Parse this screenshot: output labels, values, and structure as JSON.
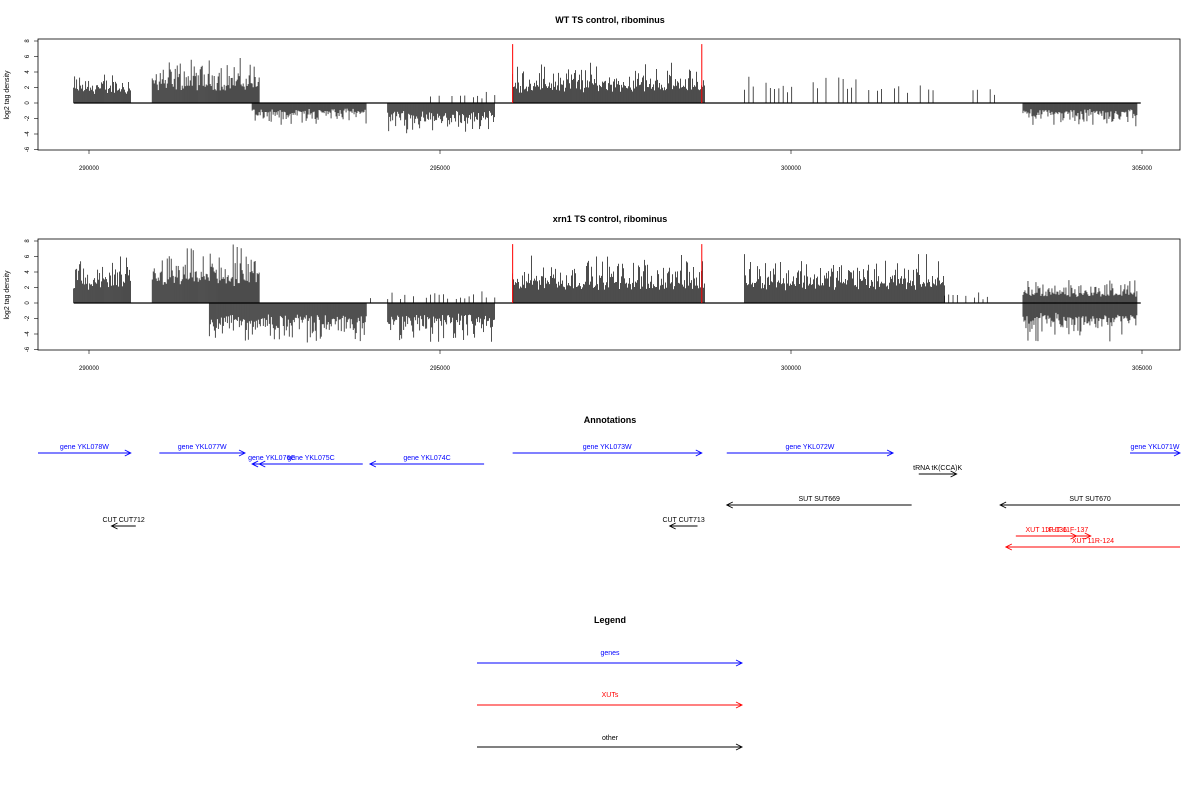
{
  "chart_data": [
    {
      "type": "bar",
      "title": "WT TS control, ribominus",
      "ylabel": "log2 tag density",
      "xlim": [
        289400,
        305400
      ],
      "ylim": [
        -6,
        8
      ],
      "x_ticks": [
        "290000",
        "295000",
        "300000",
        "305000"
      ],
      "y_ticks": [
        "-6",
        "-4",
        "-2",
        "0",
        "2",
        "4",
        "6",
        "8"
      ],
      "markers": {
        "color": "#ff0000",
        "x": [
          296050,
          298700
        ]
      },
      "segments": [
        {
          "start": 289900,
          "end": 290700,
          "strand": "+",
          "max": 4.0
        },
        {
          "start": 291000,
          "end": 292500,
          "strand": "+",
          "max": 5.8
        },
        {
          "start": 292400,
          "end": 294000,
          "strand": "-",
          "max": 2.8
        },
        {
          "start": 294300,
          "end": 295800,
          "strand": "-",
          "max": 3.9
        },
        {
          "start": 294900,
          "end": 295800,
          "strand": "+",
          "max": 1.8,
          "sparse": true
        },
        {
          "start": 296050,
          "end": 298750,
          "strand": "+",
          "max": 5.2
        },
        {
          "start": 299300,
          "end": 302000,
          "strand": "+",
          "max": 3.8,
          "sparse": true
        },
        {
          "start": 302500,
          "end": 302800,
          "strand": "+",
          "max": 2.5,
          "sparse": true
        },
        {
          "start": 303200,
          "end": 304800,
          "strand": "-",
          "max": 3.0
        }
      ]
    },
    {
      "type": "bar",
      "title": "xrn1 TS control, ribominus",
      "ylabel": "log2 tag density",
      "xlim": [
        289400,
        305400
      ],
      "ylim": [
        -6,
        8
      ],
      "x_ticks": [
        "290000",
        "295000",
        "300000",
        "305000"
      ],
      "y_ticks": [
        "-6",
        "-4",
        "-2",
        "0",
        "2",
        "4",
        "6",
        "8"
      ],
      "markers": {
        "color": "#ff0000",
        "x": [
          296050,
          298700
        ]
      },
      "segments": [
        {
          "start": 289900,
          "end": 290700,
          "strand": "+",
          "max": 6.0
        },
        {
          "start": 291000,
          "end": 292500,
          "strand": "+",
          "max": 7.6
        },
        {
          "start": 291800,
          "end": 294000,
          "strand": "-",
          "max": 5.5
        },
        {
          "start": 294300,
          "end": 295800,
          "strand": "-",
          "max": 5.0
        },
        {
          "start": 294000,
          "end": 295800,
          "strand": "+",
          "max": 1.5,
          "sparse": true
        },
        {
          "start": 296050,
          "end": 298750,
          "strand": "+",
          "max": 6.2
        },
        {
          "start": 299300,
          "end": 302100,
          "strand": "+",
          "max": 6.3
        },
        {
          "start": 302100,
          "end": 302700,
          "strand": "+",
          "max": 1.5,
          "sparse": true
        },
        {
          "start": 303200,
          "end": 304800,
          "strand": "+",
          "max": 3.0
        },
        {
          "start": 303200,
          "end": 304800,
          "strand": "-",
          "max": 5.0
        }
      ]
    }
  ],
  "annotations": {
    "title": "Annotations",
    "items": [
      {
        "label": "gene YKL078W",
        "color": "#0000ff",
        "start": 289400,
        "end": 290700,
        "row": 0,
        "strand": "+"
      },
      {
        "label": "gene YKL077W",
        "color": "#0000ff",
        "start": 291100,
        "end": 292300,
        "row": 0,
        "strand": "+"
      },
      {
        "label": "gene YKL076C",
        "color": "#0000ff",
        "start": 292400,
        "end": 292950,
        "row": 1,
        "strand": "-"
      },
      {
        "label": "gene YKL075C",
        "color": "#0000ff",
        "start": 292500,
        "end": 293950,
        "row": 1,
        "strand": "-"
      },
      {
        "label": "gene YKL074C",
        "color": "#0000ff",
        "start": 294050,
        "end": 295650,
        "row": 1,
        "strand": "-"
      },
      {
        "label": "gene YKL073W",
        "color": "#0000ff",
        "start": 296050,
        "end": 298700,
        "row": 0,
        "strand": "+"
      },
      {
        "label": "gene YKL072W",
        "color": "#0000ff",
        "start": 299050,
        "end": 301380,
        "row": 0,
        "strand": "+"
      },
      {
        "label": "gene YKL071W",
        "color": "#0000ff",
        "start": 304700,
        "end": 305400,
        "row": 0,
        "strand": "+"
      },
      {
        "label": "tRNA tK(CCA)K",
        "color": "#000000",
        "start": 301740,
        "end": 302270,
        "row": 2,
        "strand": "+"
      },
      {
        "label": "SUT SUT669",
        "color": "#000000",
        "start": 299050,
        "end": 301640,
        "row": 3,
        "strand": "-"
      },
      {
        "label": "SUT SUT670",
        "color": "#000000",
        "start": 302880,
        "end": 305400,
        "row": 3,
        "strand": "-"
      },
      {
        "label": "CUT CUT712",
        "color": "#000000",
        "start": 290430,
        "end": 290770,
        "row": 4,
        "strand": "-"
      },
      {
        "label": "CUT CUT713",
        "color": "#000000",
        "start": 298250,
        "end": 298640,
        "row": 4,
        "strand": "-"
      },
      {
        "label": "XUT 11F-136",
        "color": "#ff0000",
        "start": 303100,
        "end": 303950,
        "row": 5,
        "strand": "+"
      },
      {
        "label": "XUT 11F-137",
        "color": "#ff0000",
        "start": 303500,
        "end": 304150,
        "row": 5,
        "strand": "+"
      },
      {
        "label": "XUT 11R-124",
        "color": "#ff0000",
        "start": 302960,
        "end": 305400,
        "row": 6,
        "strand": "-"
      }
    ]
  },
  "legend": {
    "title": "Legend",
    "items": [
      {
        "label": "genes",
        "color": "#0000ff"
      },
      {
        "label": "XUTs",
        "color": "#ff0000"
      },
      {
        "label": "other",
        "color": "#000000"
      }
    ]
  }
}
